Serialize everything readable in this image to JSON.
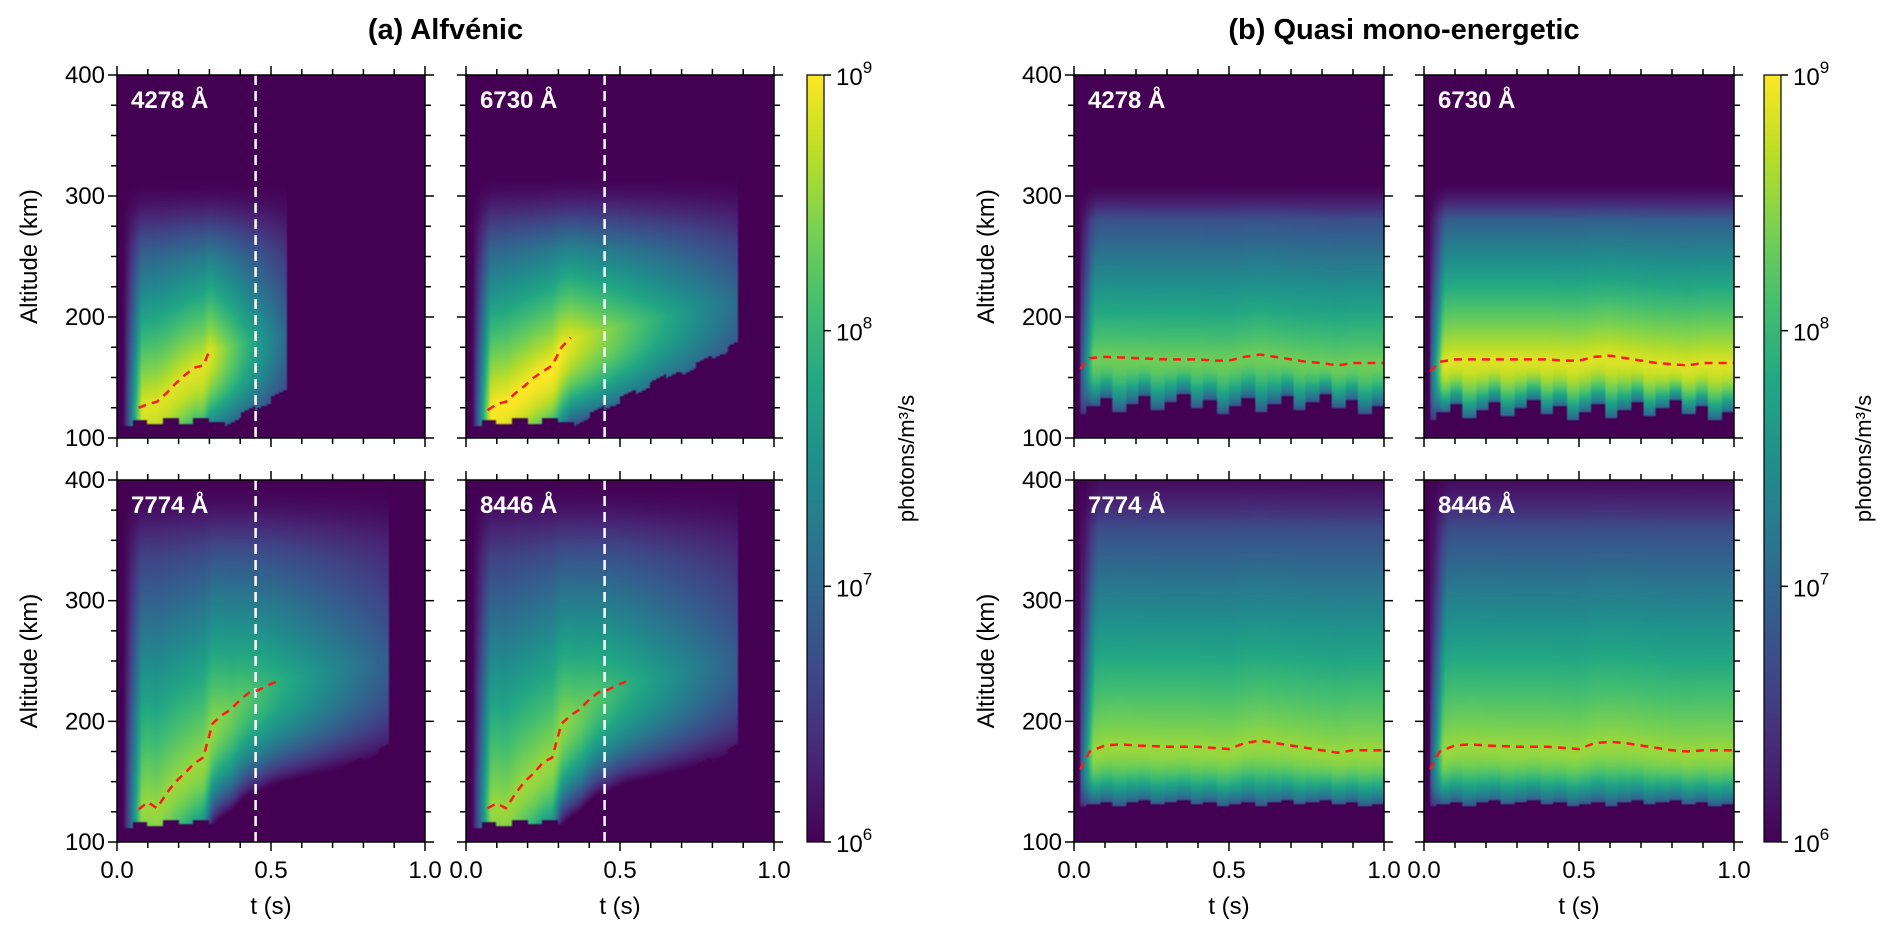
{
  "figure": {
    "groups": [
      {
        "title": "(a) Alfvénic"
      },
      {
        "title": "(b) Quasi mono-energetic"
      }
    ]
  },
  "chart_data": [
    {
      "type": "heatmap",
      "group": "(a) Alfvénic",
      "panel_label": "4278 Å",
      "xlabel": "t (s)",
      "ylabel": "Altitude (km)",
      "xlim": [
        0.0,
        1.0
      ],
      "ylim": [
        100,
        400
      ],
      "xticks": [
        "0.0",
        "0.5",
        "1.0"
      ],
      "yticks": [
        "100",
        "200",
        "300",
        "400"
      ],
      "color_scale": "log",
      "clim": [
        1000000.0,
        1000000000.0
      ],
      "emission_extent": {
        "t_start": 0.0,
        "t_end": 0.55,
        "alt_top": 305,
        "alt_bottom": 110
      },
      "peak_altitude_line": {
        "style": "red dashed",
        "t": [
          0.07,
          0.1,
          0.13,
          0.16,
          0.19,
          0.22,
          0.25,
          0.28,
          0.3
        ],
        "altitude": [
          125,
          128,
          130,
          137,
          145,
          152,
          158,
          160,
          172
        ]
      },
      "vertical_marker": {
        "style": "white dashed",
        "t": 0.45
      }
    },
    {
      "type": "heatmap",
      "group": "(a) Alfvénic",
      "panel_label": "6730 Å",
      "xlabel": "t (s)",
      "ylabel": "",
      "xlim": [
        0.0,
        1.0
      ],
      "ylim": [
        100,
        400
      ],
      "xticks": [
        "0.0",
        "0.5",
        "1.0"
      ],
      "yticks": [],
      "color_scale": "log",
      "clim": [
        1000000.0,
        1000000000.0
      ],
      "emission_extent": {
        "t_start": 0.0,
        "t_end": 0.88,
        "alt_top": 310,
        "alt_bottom": 110
      },
      "peak_altitude_line": {
        "style": "red dashed",
        "t": [
          0.07,
          0.1,
          0.13,
          0.16,
          0.19,
          0.22,
          0.25,
          0.28,
          0.31,
          0.34
        ],
        "altitude": [
          123,
          128,
          130,
          137,
          143,
          150,
          155,
          160,
          175,
          183
        ]
      },
      "vertical_marker": {
        "style": "white dashed",
        "t": 0.45
      }
    },
    {
      "type": "heatmap",
      "group": "(a) Alfvénic",
      "panel_label": "7774 Å",
      "xlabel": "t (s)",
      "ylabel": "Altitude (km)",
      "xlim": [
        0.0,
        1.0
      ],
      "ylim": [
        100,
        400
      ],
      "xticks": [
        "0.0",
        "0.5",
        "1.0"
      ],
      "yticks": [
        "100",
        "200",
        "300",
        "400"
      ],
      "color_scale": "log",
      "clim": [
        1000000.0,
        1000000000.0
      ],
      "emission_extent": {
        "t_start": 0.0,
        "t_end": 0.88,
        "alt_top": 390,
        "alt_bottom": 112
      },
      "peak_altitude_line": {
        "style": "red dashed",
        "t": [
          0.07,
          0.1,
          0.13,
          0.16,
          0.19,
          0.22,
          0.25,
          0.28,
          0.31,
          0.34,
          0.37,
          0.4,
          0.43,
          0.46,
          0.49,
          0.52
        ],
        "altitude": [
          127,
          133,
          128,
          140,
          150,
          157,
          165,
          170,
          198,
          205,
          210,
          218,
          224,
          226,
          230,
          233
        ]
      },
      "vertical_marker": {
        "style": "white dashed",
        "t": 0.45
      }
    },
    {
      "type": "heatmap",
      "group": "(a) Alfvénic",
      "panel_label": "8446 Å",
      "xlabel": "t (s)",
      "ylabel": "",
      "xlim": [
        0.0,
        1.0
      ],
      "ylim": [
        100,
        400
      ],
      "xticks": [
        "0.0",
        "0.5",
        "1.0"
      ],
      "yticks": [],
      "color_scale": "log",
      "clim": [
        1000000.0,
        1000000000.0
      ],
      "emission_extent": {
        "t_start": 0.0,
        "t_end": 0.88,
        "alt_top": 390,
        "alt_bottom": 112
      },
      "peak_altitude_line": {
        "style": "red dashed",
        "t": [
          0.07,
          0.1,
          0.13,
          0.16,
          0.19,
          0.22,
          0.25,
          0.28,
          0.31,
          0.34,
          0.37,
          0.4,
          0.43,
          0.46,
          0.49,
          0.52
        ],
        "altitude": [
          128,
          132,
          128,
          140,
          150,
          157,
          166,
          170,
          198,
          205,
          210,
          218,
          224,
          226,
          230,
          233
        ]
      },
      "vertical_marker": {
        "style": "white dashed",
        "t": 0.45
      }
    },
    {
      "type": "heatmap",
      "group": "(b) Quasi mono-energetic",
      "panel_label": "4278 Å",
      "xlabel": "t (s)",
      "ylabel": "Altitude (km)",
      "xlim": [
        0.0,
        1.0
      ],
      "ylim": [
        100,
        400
      ],
      "xticks": [
        "0.0",
        "0.5",
        "1.0"
      ],
      "yticks": [
        "100",
        "200",
        "300",
        "400"
      ],
      "color_scale": "log",
      "clim": [
        1000000.0,
        1000000000.0
      ],
      "emission_extent": {
        "t_start": 0.02,
        "t_end": 1.0,
        "alt_top": 305,
        "alt_bottom": 120
      },
      "peak_altitude_line": {
        "style": "red dashed",
        "t": [
          0.02,
          0.05,
          0.1,
          0.2,
          0.3,
          0.4,
          0.45,
          0.5,
          0.55,
          0.6,
          0.65,
          0.7,
          0.75,
          0.8,
          0.85,
          0.9,
          1.0
        ],
        "altitude": [
          157,
          166,
          167,
          166,
          165,
          165,
          164,
          164,
          167,
          169,
          167,
          165,
          163,
          162,
          160,
          162,
          162
        ]
      },
      "vertical_marker": null
    },
    {
      "type": "heatmap",
      "group": "(b) Quasi mono-energetic",
      "panel_label": "6730 Å",
      "xlabel": "t (s)",
      "ylabel": "",
      "xlim": [
        0.0,
        1.0
      ],
      "ylim": [
        100,
        400
      ],
      "xticks": [
        "0.0",
        "0.5",
        "1.0"
      ],
      "yticks": [],
      "color_scale": "log",
      "clim": [
        1000000.0,
        1000000000.0
      ],
      "emission_extent": {
        "t_start": 0.02,
        "t_end": 1.0,
        "alt_top": 305,
        "alt_bottom": 115
      },
      "peak_altitude_line": {
        "style": "red dashed",
        "t": [
          0.02,
          0.05,
          0.1,
          0.2,
          0.3,
          0.4,
          0.45,
          0.5,
          0.55,
          0.6,
          0.65,
          0.7,
          0.75,
          0.8,
          0.85,
          0.9,
          1.0
        ],
        "altitude": [
          155,
          163,
          165,
          165,
          165,
          165,
          164,
          164,
          167,
          168,
          166,
          164,
          162,
          161,
          160,
          162,
          162
        ]
      },
      "vertical_marker": null
    },
    {
      "type": "heatmap",
      "group": "(b) Quasi mono-energetic",
      "panel_label": "7774 Å",
      "xlabel": "t (s)",
      "ylabel": "Altitude (km)",
      "xlim": [
        0.0,
        1.0
      ],
      "ylim": [
        100,
        400
      ],
      "xticks": [
        "0.0",
        "0.5",
        "1.0"
      ],
      "yticks": [
        "100",
        "200",
        "300",
        "400"
      ],
      "color_scale": "log",
      "clim": [
        1000000.0,
        1000000000.0
      ],
      "emission_extent": {
        "t_start": 0.02,
        "t_end": 1.0,
        "alt_top": 400,
        "alt_bottom": 130
      },
      "peak_altitude_line": {
        "style": "red dashed",
        "t": [
          0.02,
          0.05,
          0.1,
          0.15,
          0.2,
          0.3,
          0.4,
          0.45,
          0.5,
          0.55,
          0.6,
          0.65,
          0.7,
          0.75,
          0.8,
          0.85,
          0.9,
          1.0
        ],
        "altitude": [
          160,
          175,
          180,
          181,
          180,
          179,
          179,
          178,
          177,
          182,
          184,
          182,
          180,
          178,
          176,
          174,
          176,
          176
        ]
      },
      "vertical_marker": null
    },
    {
      "type": "heatmap",
      "group": "(b) Quasi mono-energetic",
      "panel_label": "8446 Å",
      "xlabel": "t (s)",
      "ylabel": "",
      "xlim": [
        0.0,
        1.0
      ],
      "ylim": [
        100,
        400
      ],
      "xticks": [
        "0.0",
        "0.5",
        "1.0"
      ],
      "yticks": [],
      "color_scale": "log",
      "clim": [
        1000000.0,
        1000000000.0
      ],
      "emission_extent": {
        "t_start": 0.02,
        "t_end": 1.0,
        "alt_top": 400,
        "alt_bottom": 130
      },
      "peak_altitude_line": {
        "style": "red dashed",
        "t": [
          0.02,
          0.05,
          0.1,
          0.15,
          0.2,
          0.3,
          0.4,
          0.45,
          0.5,
          0.55,
          0.6,
          0.65,
          0.7,
          0.75,
          0.8,
          0.85,
          0.9,
          1.0
        ],
        "altitude": [
          160,
          175,
          180,
          181,
          180,
          179,
          179,
          178,
          177,
          182,
          183,
          182,
          180,
          178,
          176,
          175,
          176,
          176
        ]
      },
      "vertical_marker": null
    }
  ],
  "colorbars": [
    {
      "label": "photons/m³/s",
      "scale": "log",
      "ticks": [
        {
          "base": "10",
          "exp": "6"
        },
        {
          "base": "10",
          "exp": "7"
        },
        {
          "base": "10",
          "exp": "8"
        },
        {
          "base": "10",
          "exp": "9"
        }
      ],
      "colormap": "viridis"
    },
    {
      "label": "photons/m³/s",
      "scale": "log",
      "ticks": [
        {
          "base": "10",
          "exp": "6"
        },
        {
          "base": "10",
          "exp": "7"
        },
        {
          "base": "10",
          "exp": "8"
        },
        {
          "base": "10",
          "exp": "9"
        }
      ],
      "colormap": "viridis"
    }
  ],
  "colors": {
    "line_peak": "#ff1a1a",
    "line_marker": "#ffffff",
    "background_min": "#440154"
  }
}
